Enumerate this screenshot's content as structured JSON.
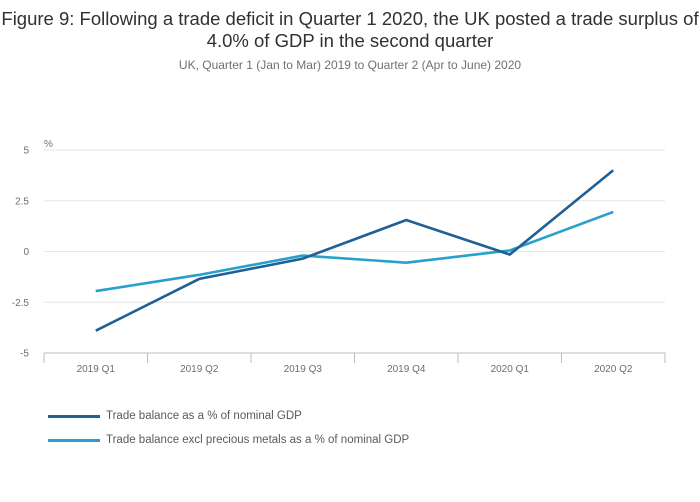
{
  "header": {
    "title": "Figure 9: Following a trade deficit in Quarter 1 2020, the UK posted a trade surplus of 4.0% of GDP in the second quarter",
    "subtitle": "UK, Quarter 1 (Jan to Mar) 2019 to Quarter 2 (Apr to June) 2020"
  },
  "colors": {
    "series1": "#206095",
    "series2": "#27a0cc",
    "grid": "#e6e6e6",
    "axis": "#bdbdbd"
  },
  "chart_data": {
    "type": "line",
    "title": "Figure 9: Following a trade deficit in Quarter 1 2020, the UK posted a trade surplus of 4.0% of GDP in the second quarter",
    "subtitle": "UK, Quarter 1 (Jan to Mar) 2019 to Quarter 2 (Apr to June) 2020",
    "ylabel": "%",
    "xlabel": "",
    "ylim": [
      -5,
      5
    ],
    "yticks": [
      "5",
      "2.5",
      "0",
      "-2.5",
      "-5"
    ],
    "ytick_values": [
      5,
      2.5,
      0,
      -2.5,
      -5
    ],
    "categories": [
      "2019 Q1",
      "2019 Q2",
      "2019 Q3",
      "2019 Q4",
      "2020 Q1",
      "2020 Q2"
    ],
    "series": [
      {
        "name": "Trade balance as a % of nominal GDP",
        "values": [
          -3.9,
          -1.35,
          -0.35,
          1.55,
          -0.15,
          4.0
        ]
      },
      {
        "name": "Trade balance excl precious metals as a % of nominal GDP",
        "values": [
          -1.95,
          -1.15,
          -0.2,
          -0.55,
          0.05,
          1.95
        ]
      }
    ],
    "grid": true,
    "legend_position": "bottom-left"
  }
}
